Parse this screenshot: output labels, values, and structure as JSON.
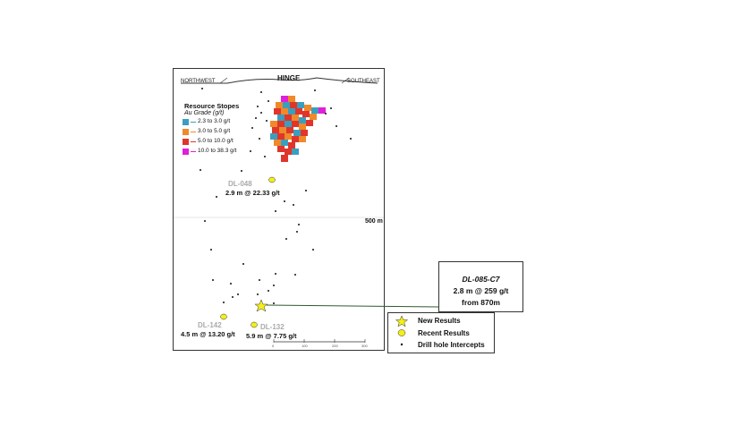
{
  "section": {
    "hinge_label": "HINGE",
    "northwest_label": "NORTHWEST",
    "southeast_label": "SOUTHEAST",
    "depth_label": "500 m"
  },
  "resource_legend": {
    "title": "Resource Stopes",
    "subtitle": "Au Grade (g/t)",
    "grades": [
      {
        "label": "2.3 to 3.0 g/t",
        "color": "#3a9fbf"
      },
      {
        "label": "3.0 to 5.0 g/t",
        "color": "#f0892a"
      },
      {
        "label": "5.0 to 10.0 g/t",
        "color": "#e0352b"
      },
      {
        "label": "10.0 to 38.3 g/t",
        "color": "#e11fd9"
      }
    ]
  },
  "holes": [
    {
      "id": "DL-048",
      "intercept": "2.9 m @ 22.33 g/t"
    },
    {
      "id": "DL-142",
      "intercept": "4.5 m @ 13.20 g/t"
    },
    {
      "id": "DL-132",
      "intercept": "5.9 m @ 7.75 g/t"
    }
  ],
  "callout": {
    "id": "DL-085-C7",
    "line1": "2.8 m @ 259 g/t",
    "line2": "from 870m",
    "line_color": "#2e5a2e"
  },
  "map_legend": {
    "new_results": "New Results",
    "recent_results": "Recent Results",
    "drill_intercepts": "Drill hole Intercepts",
    "star_color": "#f5ef19",
    "recent_color": "#f5ef19"
  },
  "scale_bar": {
    "ticks": [
      "0",
      "100",
      "200",
      "300"
    ]
  }
}
